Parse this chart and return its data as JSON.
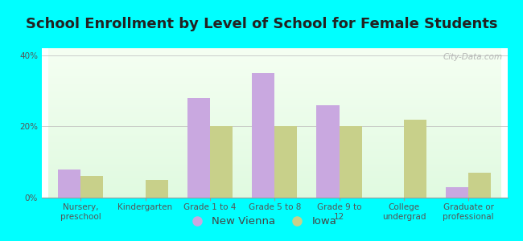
{
  "title": "School Enrollment by Level of School for Female Students",
  "categories": [
    "Nursery,\npreschool",
    "Kindergarten",
    "Grade 1 to 4",
    "Grade 5 to 8",
    "Grade 9 to\n12",
    "College\nundergrad",
    "Graduate or\nprofessional"
  ],
  "new_vienna": [
    8,
    0,
    28,
    35,
    26,
    0,
    3
  ],
  "iowa": [
    6,
    5,
    20,
    20,
    20,
    22,
    7
  ],
  "new_vienna_color": "#c9a8e0",
  "iowa_color": "#c8d08a",
  "bar_width": 0.35,
  "ylim": [
    0,
    42
  ],
  "yticks": [
    0,
    20,
    40
  ],
  "ytick_labels": [
    "0%",
    "20%",
    "40%"
  ],
  "background_color": "#00ffff",
  "legend_new_vienna": "New Vienna",
  "legend_iowa": "Iowa",
  "title_fontsize": 13,
  "tick_fontsize": 7.5,
  "legend_fontsize": 9.5,
  "watermark": "City-Data.com"
}
